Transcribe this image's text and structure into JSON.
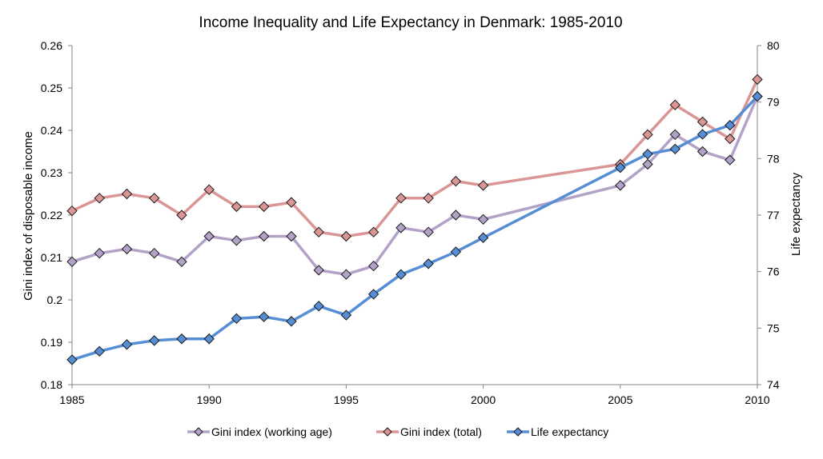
{
  "chart_data": {
    "type": "line",
    "title": "Income Inequality and Life Expectancy in Denmark: 1985-2010",
    "xlabel": "",
    "ylabel": "Gini index of disposable income",
    "y2label": "Life expectancy",
    "x": [
      1985,
      1986,
      1987,
      1988,
      1989,
      1990,
      1991,
      1992,
      1993,
      1994,
      1995,
      1996,
      1997,
      1998,
      1999,
      2000,
      2005,
      2006,
      2007,
      2008,
      2009,
      2010
    ],
    "xlim": [
      1985,
      2010
    ],
    "xticks": [
      "1985",
      "1990",
      "1995",
      "2000",
      "2005",
      "2010"
    ],
    "xtick_values": [
      1985,
      1990,
      1995,
      2000,
      2005,
      2010
    ],
    "ylim": [
      0.18,
      0.26
    ],
    "yticks": [
      "0.18",
      "0.19",
      "0.2",
      "0.21",
      "0.22",
      "0.23",
      "0.24",
      "0.25",
      "0.26"
    ],
    "ytick_values": [
      0.18,
      0.19,
      0.2,
      0.21,
      0.22,
      0.23,
      0.24,
      0.25,
      0.26
    ],
    "y2lim": [
      74,
      80
    ],
    "y2ticks": [
      "74",
      "75",
      "76",
      "77",
      "78",
      "79",
      "80"
    ],
    "y2tick_values": [
      74,
      75,
      76,
      77,
      78,
      79,
      80
    ],
    "grid": false,
    "legend_position": "bottom",
    "series": [
      {
        "name": "Gini index (working age)",
        "axis": "left",
        "color": "#B3A2C7",
        "values": [
          0.209,
          0.211,
          0.212,
          0.211,
          0.209,
          0.215,
          0.214,
          0.215,
          0.215,
          0.207,
          0.206,
          0.208,
          0.217,
          0.216,
          0.22,
          0.219,
          0.227,
          0.232,
          0.239,
          0.235,
          0.233,
          0.248
        ]
      },
      {
        "name": "Gini index (total)",
        "axis": "left",
        "color": "#D99694",
        "values": [
          0.221,
          0.224,
          0.225,
          0.224,
          0.22,
          0.226,
          0.222,
          0.222,
          0.223,
          0.216,
          0.215,
          0.216,
          0.224,
          0.224,
          0.228,
          0.227,
          0.232,
          0.239,
          0.246,
          0.242,
          0.238,
          0.252
        ]
      },
      {
        "name": "Life expectancy",
        "axis": "right",
        "color": "#558ED5",
        "values": [
          74.44,
          74.59,
          74.71,
          74.78,
          74.81,
          74.81,
          75.17,
          75.2,
          75.12,
          75.39,
          75.23,
          75.6,
          75.95,
          76.14,
          76.35,
          76.6,
          77.84,
          78.08,
          78.17,
          78.43,
          78.59,
          79.1
        ]
      }
    ]
  }
}
